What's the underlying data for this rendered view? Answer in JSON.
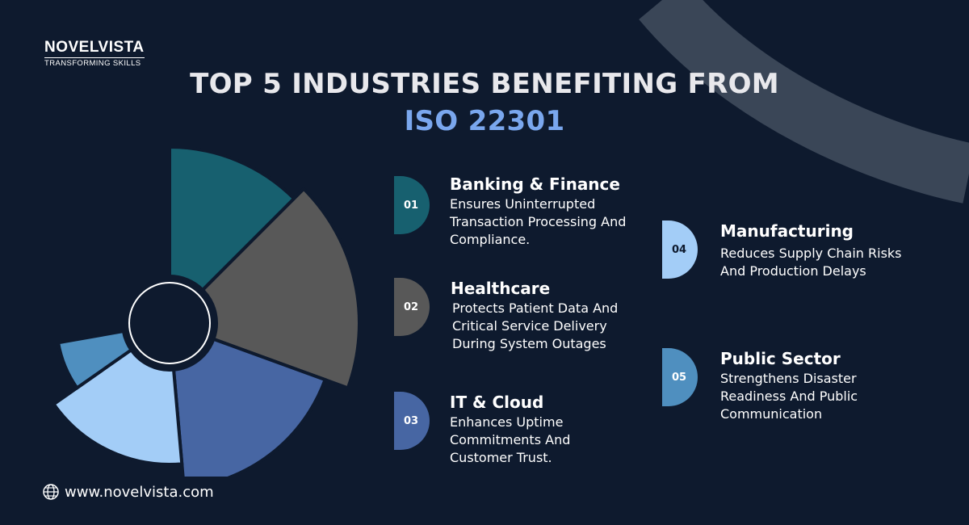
{
  "brand": {
    "name": "NOVELVISTA",
    "tagline": "TRANSFORMING SKILLS"
  },
  "title": {
    "line1": "TOP 5 INDUSTRIES BENEFITING FROM",
    "line2": "ISO 22301"
  },
  "colors": {
    "background": "#0e1a2e",
    "accent": "#7aa7ee"
  },
  "industries": [
    {
      "number": "01",
      "title": "Banking & Finance",
      "description": "Ensures Uninterrupted Transaction Processing And Compliance.",
      "color": "#17606f"
    },
    {
      "number": "02",
      "title": "Healthcare",
      "description": "Protects Patient Data And Critical Service Delivery During System Outages",
      "color": "#585858"
    },
    {
      "number": "03",
      "title": "IT & Cloud",
      "description": "Enhances Uptime Commitments And Customer Trust.",
      "color": "#4766a3"
    },
    {
      "number": "04",
      "title": "Manufacturing",
      "description": "Reduces Supply Chain Risks And Production Delays",
      "color": "#a3cdf7"
    },
    {
      "number": "05",
      "title": "Public Sector",
      "description": "Strengthens Disaster Readiness And Public Communication",
      "color": "#4f8fbf"
    }
  ],
  "footer": {
    "icon": "globe-icon",
    "url": "www.novelvista.com"
  }
}
